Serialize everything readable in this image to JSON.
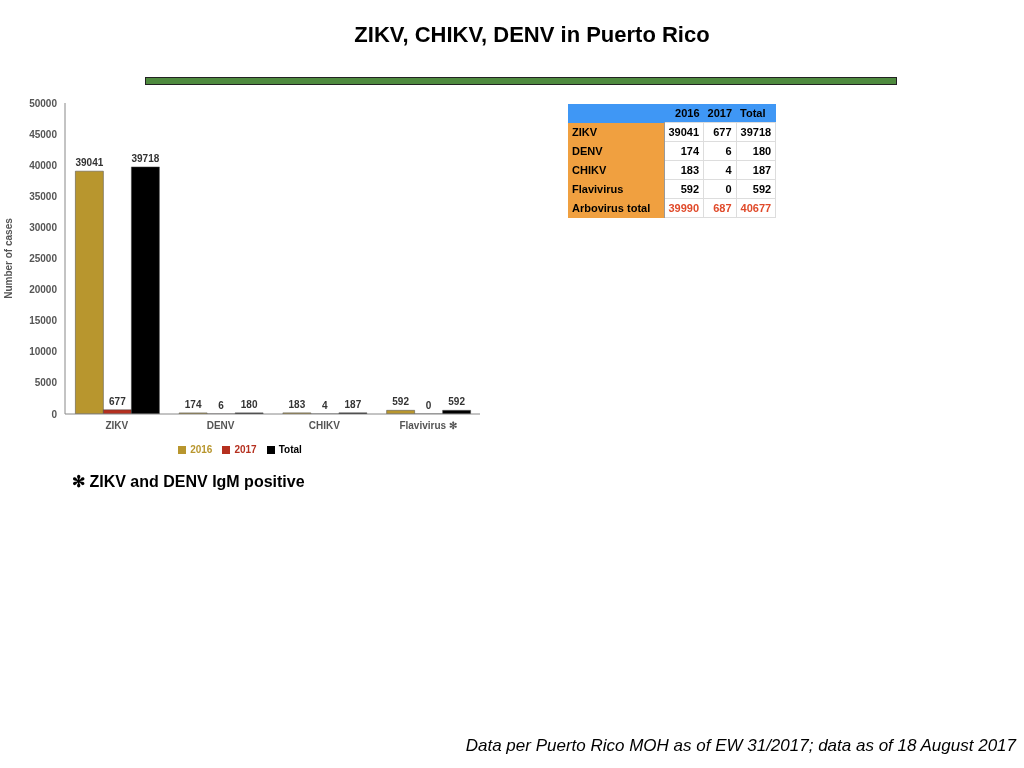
{
  "chart_data": [
    {
      "type": "bar",
      "title": "ZIKV, CHIKV, DENV in Puerto Rico",
      "ylabel": "Number of cases",
      "categories": [
        "ZIKV",
        "DENV",
        "CHIKV",
        "Flavivirus ✻"
      ],
      "series": [
        {
          "name": "2016",
          "color": "#b8962e",
          "values": [
            39041,
            174,
            183,
            592
          ]
        },
        {
          "name": "2017",
          "color": "#b5301f",
          "values": [
            677,
            6,
            4,
            0
          ]
        },
        {
          "name": "Total",
          "color": "#000000",
          "values": [
            39718,
            180,
            187,
            592
          ]
        }
      ],
      "ylim": [
        0,
        50000
      ],
      "yticks": [
        0,
        5000,
        10000,
        15000,
        20000,
        25000,
        30000,
        35000,
        40000,
        45000,
        50000
      ],
      "grid": false,
      "legend": "bottom",
      "data_labels": true,
      "annotations": [
        "✻ ZIKV and DENV IgM positive",
        "Data per Puerto Rico MOH as of EW 31/2017; data as of 18 August 2017"
      ]
    },
    {
      "type": "other",
      "categories": [
        "2016",
        "2017",
        "Total"
      ],
      "y_categories": [
        "ZIKV",
        "DENV",
        "CHIKV",
        "Flavivirus",
        "Arbovirus total"
      ],
      "cell_labels": [
        [
          "39041",
          "677",
          "39718"
        ],
        [
          "174",
          "6",
          "180"
        ],
        [
          "183",
          "4",
          "187"
        ],
        [
          "592",
          "0",
          "592"
        ],
        [
          "39990",
          "687",
          "40677"
        ]
      ]
    }
  ]
}
